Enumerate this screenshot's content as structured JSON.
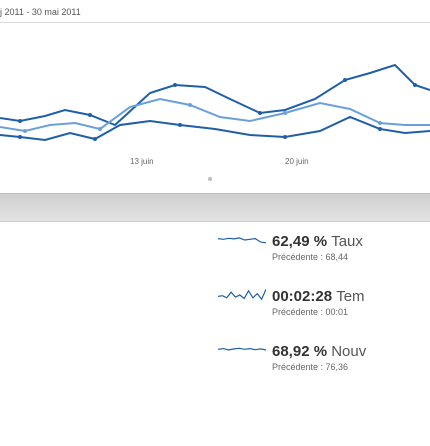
{
  "header": {
    "date_range": "j 2011 - 30 mai 2011"
  },
  "chart": {
    "axis_labels": [
      "13 juin",
      "20 juin"
    ],
    "series_colors": [
      "#1f5fa8",
      "#6aa0d8"
    ]
  },
  "metrics": [
    {
      "value": "62,49 %",
      "label": "Taux",
      "previous": "Précédente : 68,44",
      "sparkline": [
        0.6,
        0.55,
        0.62,
        0.58,
        0.65,
        0.5,
        0.55,
        0.6,
        0.35,
        0.3
      ]
    },
    {
      "value": "00:02:28",
      "label": "Tem",
      "previous": "Précédente : 00:01",
      "sparkline": [
        0.4,
        0.45,
        0.3,
        0.7,
        0.35,
        0.5,
        0.25,
        0.8,
        0.3,
        0.6,
        0.2,
        0.9
      ]
    },
    {
      "value": "68,92 %",
      "label": "Nouv",
      "previous": "Précédente : 76,36",
      "sparkline": [
        0.55,
        0.6,
        0.5,
        0.58,
        0.62,
        0.55,
        0.6,
        0.52,
        0.58,
        0.5
      ]
    }
  ]
}
